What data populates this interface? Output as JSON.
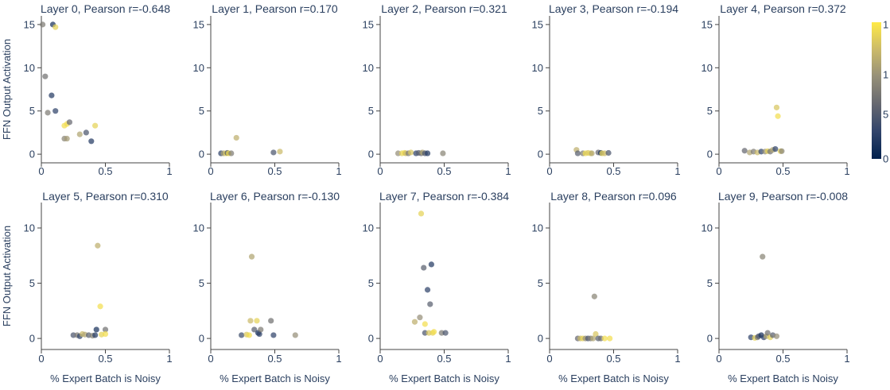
{
  "chart_data": {
    "type": "scatter",
    "xlabel": "% Expert Batch is Noisy",
    "ylabel": "FFN Output Activation",
    "colorscale": {
      "name": "cividis",
      "stops": [
        "#00204d",
        "#31446b",
        "#666870",
        "#958f78",
        "#cbba69",
        "#ffea46"
      ],
      "range": [
        0,
        1
      ],
      "tick_labels": [
        "0",
        "5",
        "1",
        "1"
      ]
    },
    "rows": [
      {
        "ylim": [
          -1,
          16
        ],
        "yticks": [
          0,
          5,
          10,
          15
        ],
        "ytick_labels": [
          "0",
          "5",
          "10",
          "15"
        ],
        "xlim": [
          0,
          1
        ],
        "xticks": [
          0,
          0.5,
          1
        ],
        "xtick_labels": [
          "0",
          "0.5",
          "1"
        ],
        "show_xlabel": false
      },
      {
        "ylim": [
          -1,
          12.3
        ],
        "yticks": [
          0,
          5,
          10
        ],
        "ytick_labels": [
          "0",
          "5",
          "10"
        ],
        "xlim": [
          0,
          1
        ],
        "xticks": [
          0,
          0.5,
          1
        ],
        "xtick_labels": [
          "0",
          "0.5",
          "1"
        ],
        "show_xlabel": true
      }
    ],
    "panels": [
      {
        "title": "Layer 0, Pearson r=-0.648",
        "row": 0,
        "col": 0,
        "points": [
          [
            0.01,
            15.0,
            0.5
          ],
          [
            0.09,
            15.0,
            0.1
          ],
          [
            0.11,
            14.7,
            0.9
          ],
          [
            0.03,
            9.0,
            0.45
          ],
          [
            0.08,
            6.8,
            0.15
          ],
          [
            0.05,
            4.8,
            0.5
          ],
          [
            0.11,
            5.0,
            0.2
          ],
          [
            0.2,
            3.5,
            0.95
          ],
          [
            0.22,
            3.7,
            0.4
          ],
          [
            0.18,
            3.3,
            0.95
          ],
          [
            0.3,
            2.3,
            0.7
          ],
          [
            0.35,
            2.5,
            0.3
          ],
          [
            0.42,
            3.3,
            0.9
          ],
          [
            0.18,
            1.8,
            0.55
          ],
          [
            0.2,
            1.8,
            0.65
          ],
          [
            0.39,
            1.5,
            0.15
          ]
        ]
      },
      {
        "title": "Layer 1, Pearson r=0.170",
        "row": 0,
        "col": 1,
        "points": [
          [
            0.08,
            0.1,
            0.2
          ],
          [
            0.1,
            0.1,
            0.7
          ],
          [
            0.12,
            0.1,
            0.9
          ],
          [
            0.13,
            0.15,
            0.3
          ],
          [
            0.14,
            0.1,
            0.95
          ],
          [
            0.16,
            0.1,
            0.5
          ],
          [
            0.2,
            1.9,
            0.75
          ],
          [
            0.49,
            0.2,
            0.3
          ],
          [
            0.54,
            0.3,
            0.8
          ]
        ]
      },
      {
        "title": "Layer 2, Pearson r=0.321",
        "row": 0,
        "col": 2,
        "points": [
          [
            0.14,
            0.1,
            0.6
          ],
          [
            0.17,
            0.1,
            0.9
          ],
          [
            0.19,
            0.15,
            0.95
          ],
          [
            0.2,
            0.1,
            0.8
          ],
          [
            0.22,
            0.1,
            0.5
          ],
          [
            0.24,
            0.2,
            0.85
          ],
          [
            0.28,
            0.1,
            0.2
          ],
          [
            0.3,
            0.15,
            0.35
          ],
          [
            0.32,
            0.1,
            0.4
          ],
          [
            0.33,
            0.2,
            0.7
          ],
          [
            0.35,
            0.1,
            0.3
          ],
          [
            0.37,
            0.1,
            0.15
          ],
          [
            0.49,
            0.1,
            0.55
          ]
        ]
      },
      {
        "title": "Layer 3, Pearson r=-0.194",
        "row": 0,
        "col": 3,
        "points": [
          [
            0.21,
            0.5,
            0.75
          ],
          [
            0.22,
            0.1,
            0.35
          ],
          [
            0.26,
            0.1,
            0.5
          ],
          [
            0.28,
            0.1,
            0.95
          ],
          [
            0.3,
            0.15,
            0.85
          ],
          [
            0.32,
            0.1,
            0.9
          ],
          [
            0.33,
            0.1,
            0.7
          ],
          [
            0.38,
            0.2,
            0.4
          ],
          [
            0.4,
            0.15,
            0.1
          ],
          [
            0.41,
            0.1,
            0.9
          ],
          [
            0.43,
            0.1,
            0.8
          ],
          [
            0.46,
            0.15,
            0.3
          ]
        ]
      },
      {
        "title": "Layer 4, Pearson r=0.372",
        "row": 0,
        "col": 4,
        "points": [
          [
            0.2,
            0.4,
            0.4
          ],
          [
            0.24,
            0.2,
            0.7
          ],
          [
            0.27,
            0.3,
            0.5
          ],
          [
            0.3,
            0.2,
            0.8
          ],
          [
            0.33,
            0.3,
            0.2
          ],
          [
            0.36,
            0.3,
            0.6
          ],
          [
            0.38,
            0.35,
            0.9
          ],
          [
            0.4,
            0.3,
            0.45
          ],
          [
            0.42,
            0.5,
            0.7
          ],
          [
            0.44,
            0.6,
            0.2
          ],
          [
            0.45,
            5.4,
            0.85
          ],
          [
            0.46,
            4.4,
            0.95
          ],
          [
            0.48,
            0.35,
            0.9
          ],
          [
            0.49,
            0.35,
            0.55
          ]
        ]
      },
      {
        "title": "Layer 5, Pearson r=0.310",
        "row": 1,
        "col": 0,
        "points": [
          [
            0.25,
            0.3,
            0.3
          ],
          [
            0.28,
            0.3,
            0.5
          ],
          [
            0.3,
            0.2,
            0.2
          ],
          [
            0.32,
            0.4,
            0.8
          ],
          [
            0.34,
            0.35,
            0.7
          ],
          [
            0.37,
            0.3,
            0.35
          ],
          [
            0.4,
            0.25,
            0.55
          ],
          [
            0.42,
            0.3,
            0.15
          ],
          [
            0.43,
            0.8,
            0.1
          ],
          [
            0.44,
            8.4,
            0.75
          ],
          [
            0.46,
            2.9,
            0.95
          ],
          [
            0.47,
            0.35,
            0.9
          ],
          [
            0.5,
            0.8,
            0.45
          ],
          [
            0.5,
            0.4,
            0.95
          ]
        ]
      },
      {
        "title": "Layer 6, Pearson r=-0.130",
        "row": 1,
        "col": 1,
        "points": [
          [
            0.24,
            0.3,
            0.25
          ],
          [
            0.28,
            0.35,
            0.85
          ],
          [
            0.3,
            0.3,
            0.95
          ],
          [
            0.31,
            1.6,
            0.8
          ],
          [
            0.32,
            7.4,
            0.7
          ],
          [
            0.34,
            0.8,
            0.35
          ],
          [
            0.36,
            1.6,
            0.9
          ],
          [
            0.37,
            0.5,
            0.1
          ],
          [
            0.38,
            0.4,
            0.2
          ],
          [
            0.39,
            0.8,
            0.5
          ],
          [
            0.47,
            1.6,
            0.45
          ],
          [
            0.49,
            0.3,
            0.2
          ],
          [
            0.66,
            0.3,
            0.6
          ]
        ]
      },
      {
        "title": "Layer 7, Pearson r=-0.384",
        "row": 1,
        "col": 2,
        "points": [
          [
            0.27,
            1.5,
            0.75
          ],
          [
            0.31,
            1.9,
            0.6
          ],
          [
            0.32,
            11.3,
            0.9
          ],
          [
            0.34,
            6.4,
            0.35
          ],
          [
            0.35,
            1.3,
            0.95
          ],
          [
            0.35,
            0.5,
            0.3
          ],
          [
            0.37,
            4.4,
            0.2
          ],
          [
            0.38,
            0.5,
            0.85
          ],
          [
            0.39,
            3.1,
            0.35
          ],
          [
            0.4,
            6.7,
            0.15
          ],
          [
            0.41,
            0.5,
            0.9
          ],
          [
            0.42,
            0.6,
            0.95
          ],
          [
            0.48,
            0.5,
            0.5
          ],
          [
            0.51,
            0.5,
            0.3
          ]
        ]
      },
      {
        "title": "Layer 8, Pearson r=0.096",
        "row": 1,
        "col": 3,
        "points": [
          [
            0.22,
            0.0,
            0.4
          ],
          [
            0.24,
            0.0,
            0.8
          ],
          [
            0.26,
            0.0,
            0.9
          ],
          [
            0.28,
            0.0,
            0.6
          ],
          [
            0.3,
            0.0,
            0.3
          ],
          [
            0.32,
            0.0,
            0.5
          ],
          [
            0.34,
            0.0,
            0.7
          ],
          [
            0.35,
            3.8,
            0.55
          ],
          [
            0.36,
            0.4,
            0.85
          ],
          [
            0.38,
            0.0,
            0.35
          ],
          [
            0.4,
            0.0,
            0.45
          ],
          [
            0.43,
            0.0,
            0.95
          ],
          [
            0.47,
            0.0,
            0.95
          ]
        ]
      },
      {
        "title": "Layer 9, Pearson r=-0.008",
        "row": 1,
        "col": 4,
        "points": [
          [
            0.25,
            0.1,
            0.2
          ],
          [
            0.28,
            0.05,
            0.9
          ],
          [
            0.3,
            0.1,
            0.5
          ],
          [
            0.31,
            0.2,
            0.3
          ],
          [
            0.33,
            0.3,
            0.1
          ],
          [
            0.34,
            7.4,
            0.55
          ],
          [
            0.35,
            0.1,
            0.2
          ],
          [
            0.37,
            0.2,
            0.7
          ],
          [
            0.38,
            0.5,
            0.45
          ],
          [
            0.4,
            0.1,
            0.9
          ],
          [
            0.42,
            0.3,
            0.35
          ],
          [
            0.45,
            0.2,
            0.6
          ]
        ]
      }
    ]
  }
}
